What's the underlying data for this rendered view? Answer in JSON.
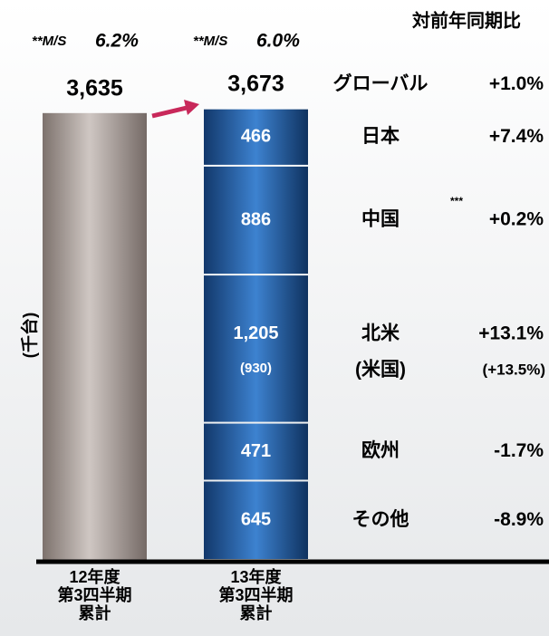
{
  "chart_data": {
    "type": "stacked_bar",
    "y_label": "(千台)",
    "header": "対前年同期比",
    "categories": [
      [
        "12年度",
        "第3四半期",
        "累計"
      ],
      [
        "13年度",
        "第3四半期",
        "累計"
      ]
    ],
    "annotations": [
      {
        "prefix": "**M/S",
        "text": "6.2%"
      },
      {
        "prefix": "**M/S",
        "text": "6.0%"
      }
    ],
    "totals": {
      "name": "グローバル",
      "values": [
        3635,
        3673
      ],
      "value_labels": [
        "3,635",
        "3,673"
      ],
      "change": "+1.0%",
      "change_color": "#1a3fcf",
      "color": "#a39893"
    },
    "ylim": [
      0,
      3700
    ],
    "series": [
      {
        "name": "その他",
        "color": "#1f5aa0",
        "values": [
          null,
          645
        ],
        "change": "-8.9%"
      },
      {
        "name": "欧州",
        "color": "#1f5aa0",
        "values": [
          null,
          471
        ],
        "change": "-1.7%"
      },
      {
        "name": "北米",
        "color": "#1f5aa0",
        "values": [
          null,
          1205
        ],
        "value_labels": [
          null,
          "1,205"
        ],
        "change": "+13.1%",
        "sub_name": "(米国)",
        "sub_values": [
          null,
          930
        ],
        "sub_value_labels": [
          null,
          "(930)"
        ],
        "sub_change": "(+13.5%)"
      },
      {
        "name": "中国",
        "color": "#1f5aa0",
        "values": [
          null,
          886
        ],
        "change": "+0.2%",
        "note": "***"
      },
      {
        "name": "日本",
        "color": "#1f5aa0",
        "values": [
          null,
          466
        ],
        "change": "+7.4%"
      }
    ]
  }
}
